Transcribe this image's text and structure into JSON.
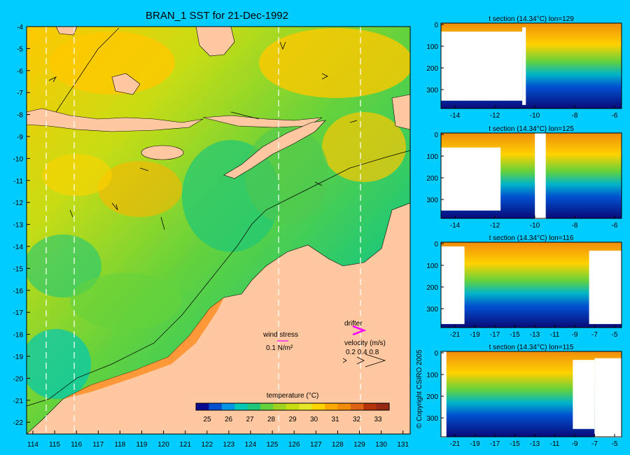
{
  "title": "BRAN_1 SST for 21-Dec-1992",
  "map": {
    "lat_ticks": [
      "-4",
      "-5",
      "-6",
      "-7",
      "-8",
      "-9",
      "-10",
      "-11",
      "-12",
      "-13",
      "-14",
      "-15",
      "-16",
      "-17",
      "-18",
      "-19",
      "-20",
      "-21",
      "-22"
    ],
    "lon_ticks": [
      "114",
      "115",
      "116",
      "117",
      "118",
      "119",
      "120",
      "121",
      "122",
      "123",
      "124",
      "125",
      "126",
      "127",
      "128",
      "129",
      "130",
      "131"
    ]
  },
  "legend": {
    "title": "temperature (°C)",
    "ticks": [
      "25",
      "26",
      "27",
      "28",
      "29",
      "30",
      "31",
      "32",
      "33"
    ],
    "colors": [
      "#0a0a90",
      "#0050d0",
      "#0096e6",
      "#00c8b4",
      "#1ec878",
      "#64d23c",
      "#a0d21e",
      "#c8dc14",
      "#e6e628",
      "#ffd200",
      "#ffaa00",
      "#f08c0a",
      "#dc6414",
      "#b4320a",
      "#962814"
    ]
  },
  "annotations": {
    "wind_stress_label": "wind stress",
    "wind_stress_scale": "0.1 N/m²",
    "drifter_label": "drifter",
    "velocity_label": "velocity (m/s)",
    "velocity_scale": "0.2 0.4 0.8"
  },
  "sections": [
    {
      "title": "t section (14.34°C) lon=129",
      "x_ticks": [
        "-14",
        "-12",
        "-10",
        "-8",
        "-6"
      ],
      "y_ticks": [
        "0",
        "100",
        "200",
        "300"
      ]
    },
    {
      "title": "t section (14.34°C) lon=125",
      "x_ticks": [
        "-14",
        "-12",
        "-10",
        "-8",
        "-6"
      ],
      "y_ticks": [
        "0",
        "100",
        "200",
        "300"
      ]
    },
    {
      "title": "t section (14.34°C) lon=116",
      "x_ticks": [
        "-21",
        "-19",
        "-17",
        "-15",
        "-13",
        "-11",
        "-9",
        "-7",
        "-5"
      ],
      "y_ticks": [
        "0",
        "100",
        "200",
        "300"
      ]
    },
    {
      "title": "t section (14.34°C) lon=115",
      "x_ticks": [
        "-21",
        "-19",
        "-17",
        "-15",
        "-13",
        "-11",
        "-9",
        "-7",
        "-5"
      ],
      "y_ticks": [
        "0",
        "100",
        "200",
        "300"
      ]
    }
  ],
  "copyright": "© Copyright CSIRO 2005"
}
